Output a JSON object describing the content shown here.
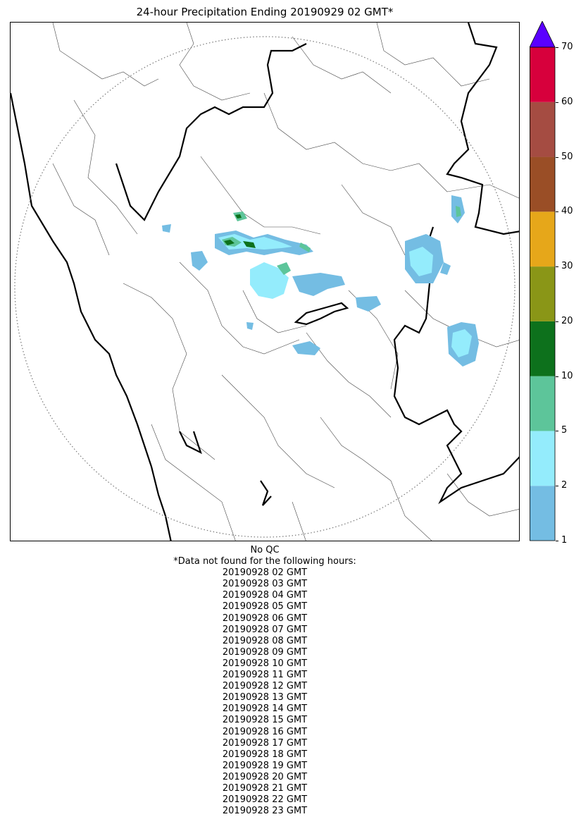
{
  "title": "24-hour Precipitation Ending 20190929 02 GMT*",
  "colorbar": {
    "levels": [
      {
        "label": "1",
        "from": 1,
        "to": 2,
        "color": "#74bde3"
      },
      {
        "label": "2",
        "from": 2,
        "to": 5,
        "color": "#94ecfc"
      },
      {
        "label": "5",
        "from": 5,
        "to": 10,
        "color": "#5dc59a"
      },
      {
        "label": "10",
        "from": 10,
        "to": 20,
        "color": "#0d711c"
      },
      {
        "label": "20",
        "from": 20,
        "to": 30,
        "color": "#8a9617"
      },
      {
        "label": "30",
        "from": 30,
        "to": 40,
        "color": "#e6a71a"
      },
      {
        "label": "40",
        "from": 40,
        "to": 50,
        "color": "#9a4e26"
      },
      {
        "label": "50",
        "from": 50,
        "to": 60,
        "color": "#a54c42"
      },
      {
        "label": "60",
        "from": 60,
        "to": 70,
        "color": "#d7003c"
      },
      {
        "label": "70",
        "from": 70,
        "to": null,
        "color": "#5a00ff"
      }
    ],
    "extend_color": "#5a00ff"
  },
  "qc_note": "No QC",
  "missing_header": "*Data not found for the following hours:",
  "missing_hours": [
    "20190928 02 GMT",
    "20190928 03 GMT",
    "20190928 04 GMT",
    "20190928 05 GMT",
    "20190928 06 GMT",
    "20190928 07 GMT",
    "20190928 08 GMT",
    "20190928 09 GMT",
    "20190928 10 GMT",
    "20190928 11 GMT",
    "20190928 12 GMT",
    "20190928 13 GMT",
    "20190928 14 GMT",
    "20190928 15 GMT",
    "20190928 16 GMT",
    "20190928 17 GMT",
    "20190928 18 GMT",
    "20190928 19 GMT",
    "20190928 20 GMT",
    "20190928 21 GMT",
    "20190928 22 GMT",
    "20190928 23 GMT"
  ]
}
